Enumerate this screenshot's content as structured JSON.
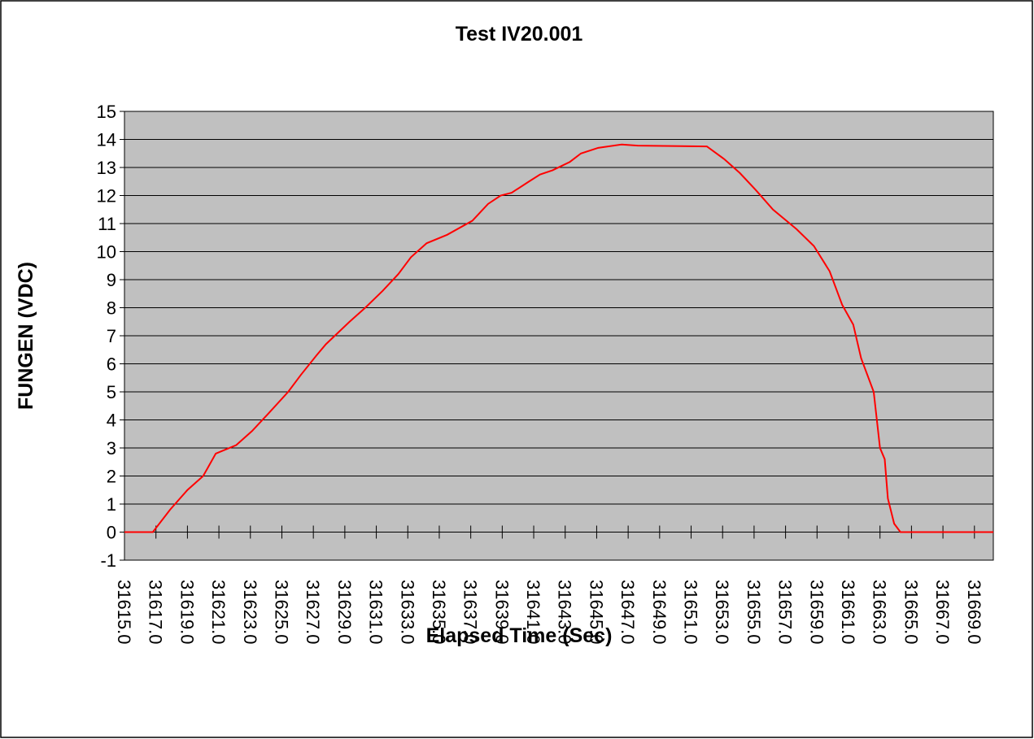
{
  "chart_data": {
    "type": "line",
    "title": "Test IV20.001",
    "x_label": "Elapsed Time (Sec)",
    "y_label": "FUNGEN (VDC)",
    "x": [
      31615.0,
      31616.8,
      31617.9,
      31619.0,
      31620.0,
      31620.8,
      31622.1,
      31623.1,
      31624.1,
      31625.4,
      31626.2,
      31627.2,
      31627.8,
      31629.3,
      31630.3,
      31631.4,
      31632.4,
      31633.2,
      31634.2,
      31635.5,
      31637.1,
      31638.1,
      31638.9,
      31639.6,
      31640.7,
      31641.4,
      31642.2,
      31643.3,
      31644.0,
      31645.1,
      31646.6,
      31647.6,
      31652.0,
      31653.1,
      31654.1,
      31655.1,
      31656.2,
      31657.7,
      31658.8,
      31659.8,
      31660.6,
      31661.3,
      31661.8,
      31662.6,
      31663.0,
      31663.3,
      31663.5,
      31663.9,
      31664.3,
      31670.2
    ],
    "series": [
      {
        "name": "FUNGEN",
        "color": "#ff0000",
        "values": [
          0,
          0,
          0.8,
          1.5,
          2.0,
          2.8,
          3.1,
          3.6,
          4.2,
          5.0,
          5.6,
          6.3,
          6.7,
          7.5,
          8.0,
          8.6,
          9.2,
          9.8,
          10.3,
          10.6,
          11.1,
          11.7,
          12.0,
          12.1,
          12.5,
          12.75,
          12.9,
          13.2,
          13.5,
          13.7,
          13.82,
          13.78,
          13.75,
          13.3,
          12.8,
          12.2,
          11.5,
          10.8,
          10.2,
          9.3,
          8.1,
          7.4,
          6.2,
          5.0,
          3.0,
          2.6,
          1.2,
          0.3,
          0,
          0
        ]
      }
    ],
    "xlim": [
      31615.0,
      31670.2
    ],
    "xticks": [
      {
        "value": 31615,
        "label": "31615.0"
      },
      {
        "value": 31617,
        "label": "31617.0"
      },
      {
        "value": 31619,
        "label": "31619.0"
      },
      {
        "value": 31621,
        "label": "31621.0"
      },
      {
        "value": 31623,
        "label": "31623.0"
      },
      {
        "value": 31625,
        "label": "31625.0"
      },
      {
        "value": 31627,
        "label": "31627.0"
      },
      {
        "value": 31629,
        "label": "31629.0"
      },
      {
        "value": 31631,
        "label": "31631.0"
      },
      {
        "value": 31633,
        "label": "31633.0"
      },
      {
        "value": 31635,
        "label": "31635.0"
      },
      {
        "value": 31637,
        "label": "31637.0"
      },
      {
        "value": 31639,
        "label": "31639.0"
      },
      {
        "value": 31641,
        "label": "31641.0"
      },
      {
        "value": 31643,
        "label": "31643.0"
      },
      {
        "value": 31645,
        "label": "31645.0"
      },
      {
        "value": 31647,
        "label": "31647.0"
      },
      {
        "value": 31649,
        "label": "31649.0"
      },
      {
        "value": 31651,
        "label": "31651.0"
      },
      {
        "value": 31653,
        "label": "31653.0"
      },
      {
        "value": 31655,
        "label": "31655.0"
      },
      {
        "value": 31657,
        "label": "31657.0"
      },
      {
        "value": 31659,
        "label": "31659.0"
      },
      {
        "value": 31661,
        "label": "31661.0"
      },
      {
        "value": 31663,
        "label": "31663.0"
      },
      {
        "value": 31665,
        "label": "31665.0"
      },
      {
        "value": 31667,
        "label": "31667.0"
      },
      {
        "value": 31669,
        "label": "31669.0"
      }
    ],
    "ylim": [
      -1,
      15
    ],
    "yticks": [
      -1,
      0,
      1,
      2,
      3,
      4,
      5,
      6,
      7,
      8,
      9,
      10,
      11,
      12,
      13,
      14,
      15
    ],
    "grid": true,
    "plot_background": "#c0c0c0"
  }
}
